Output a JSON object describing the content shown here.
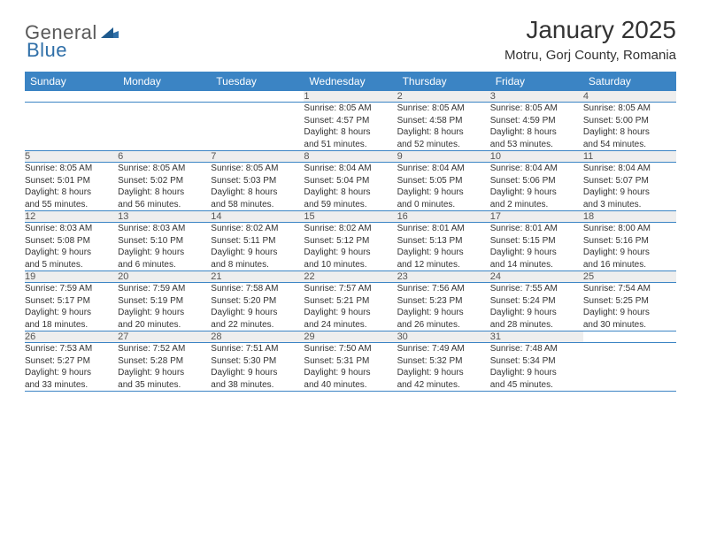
{
  "brand": {
    "part1": "General",
    "part2": "Blue"
  },
  "colors": {
    "header_bg": "#3b84c4",
    "header_text": "#ffffff",
    "daynum_bg": "#eeeeee",
    "daynum_text": "#555555",
    "row_border": "#3b84c4",
    "body_text": "#333333",
    "logo_gray": "#5a5a5a",
    "logo_blue": "#2f6fa8",
    "page_bg": "#ffffff"
  },
  "title": "January 2025",
  "location": "Motru, Gorj County, Romania",
  "weekdays": [
    "Sunday",
    "Monday",
    "Tuesday",
    "Wednesday",
    "Thursday",
    "Friday",
    "Saturday"
  ],
  "weeks": [
    {
      "nums": [
        "",
        "",
        "",
        "1",
        "2",
        "3",
        "4"
      ],
      "cells": [
        {
          "empty": true
        },
        {
          "empty": true
        },
        {
          "empty": true
        },
        {
          "sunrise": "Sunrise: 8:05 AM",
          "sunset": "Sunset: 4:57 PM",
          "day1": "Daylight: 8 hours",
          "day2": "and 51 minutes."
        },
        {
          "sunrise": "Sunrise: 8:05 AM",
          "sunset": "Sunset: 4:58 PM",
          "day1": "Daylight: 8 hours",
          "day2": "and 52 minutes."
        },
        {
          "sunrise": "Sunrise: 8:05 AM",
          "sunset": "Sunset: 4:59 PM",
          "day1": "Daylight: 8 hours",
          "day2": "and 53 minutes."
        },
        {
          "sunrise": "Sunrise: 8:05 AM",
          "sunset": "Sunset: 5:00 PM",
          "day1": "Daylight: 8 hours",
          "day2": "and 54 minutes."
        }
      ]
    },
    {
      "nums": [
        "5",
        "6",
        "7",
        "8",
        "9",
        "10",
        "11"
      ],
      "cells": [
        {
          "sunrise": "Sunrise: 8:05 AM",
          "sunset": "Sunset: 5:01 PM",
          "day1": "Daylight: 8 hours",
          "day2": "and 55 minutes."
        },
        {
          "sunrise": "Sunrise: 8:05 AM",
          "sunset": "Sunset: 5:02 PM",
          "day1": "Daylight: 8 hours",
          "day2": "and 56 minutes."
        },
        {
          "sunrise": "Sunrise: 8:05 AM",
          "sunset": "Sunset: 5:03 PM",
          "day1": "Daylight: 8 hours",
          "day2": "and 58 minutes."
        },
        {
          "sunrise": "Sunrise: 8:04 AM",
          "sunset": "Sunset: 5:04 PM",
          "day1": "Daylight: 8 hours",
          "day2": "and 59 minutes."
        },
        {
          "sunrise": "Sunrise: 8:04 AM",
          "sunset": "Sunset: 5:05 PM",
          "day1": "Daylight: 9 hours",
          "day2": "and 0 minutes."
        },
        {
          "sunrise": "Sunrise: 8:04 AM",
          "sunset": "Sunset: 5:06 PM",
          "day1": "Daylight: 9 hours",
          "day2": "and 2 minutes."
        },
        {
          "sunrise": "Sunrise: 8:04 AM",
          "sunset": "Sunset: 5:07 PM",
          "day1": "Daylight: 9 hours",
          "day2": "and 3 minutes."
        }
      ]
    },
    {
      "nums": [
        "12",
        "13",
        "14",
        "15",
        "16",
        "17",
        "18"
      ],
      "cells": [
        {
          "sunrise": "Sunrise: 8:03 AM",
          "sunset": "Sunset: 5:08 PM",
          "day1": "Daylight: 9 hours",
          "day2": "and 5 minutes."
        },
        {
          "sunrise": "Sunrise: 8:03 AM",
          "sunset": "Sunset: 5:10 PM",
          "day1": "Daylight: 9 hours",
          "day2": "and 6 minutes."
        },
        {
          "sunrise": "Sunrise: 8:02 AM",
          "sunset": "Sunset: 5:11 PM",
          "day1": "Daylight: 9 hours",
          "day2": "and 8 minutes."
        },
        {
          "sunrise": "Sunrise: 8:02 AM",
          "sunset": "Sunset: 5:12 PM",
          "day1": "Daylight: 9 hours",
          "day2": "and 10 minutes."
        },
        {
          "sunrise": "Sunrise: 8:01 AM",
          "sunset": "Sunset: 5:13 PM",
          "day1": "Daylight: 9 hours",
          "day2": "and 12 minutes."
        },
        {
          "sunrise": "Sunrise: 8:01 AM",
          "sunset": "Sunset: 5:15 PM",
          "day1": "Daylight: 9 hours",
          "day2": "and 14 minutes."
        },
        {
          "sunrise": "Sunrise: 8:00 AM",
          "sunset": "Sunset: 5:16 PM",
          "day1": "Daylight: 9 hours",
          "day2": "and 16 minutes."
        }
      ]
    },
    {
      "nums": [
        "19",
        "20",
        "21",
        "22",
        "23",
        "24",
        "25"
      ],
      "cells": [
        {
          "sunrise": "Sunrise: 7:59 AM",
          "sunset": "Sunset: 5:17 PM",
          "day1": "Daylight: 9 hours",
          "day2": "and 18 minutes."
        },
        {
          "sunrise": "Sunrise: 7:59 AM",
          "sunset": "Sunset: 5:19 PM",
          "day1": "Daylight: 9 hours",
          "day2": "and 20 minutes."
        },
        {
          "sunrise": "Sunrise: 7:58 AM",
          "sunset": "Sunset: 5:20 PM",
          "day1": "Daylight: 9 hours",
          "day2": "and 22 minutes."
        },
        {
          "sunrise": "Sunrise: 7:57 AM",
          "sunset": "Sunset: 5:21 PM",
          "day1": "Daylight: 9 hours",
          "day2": "and 24 minutes."
        },
        {
          "sunrise": "Sunrise: 7:56 AM",
          "sunset": "Sunset: 5:23 PM",
          "day1": "Daylight: 9 hours",
          "day2": "and 26 minutes."
        },
        {
          "sunrise": "Sunrise: 7:55 AM",
          "sunset": "Sunset: 5:24 PM",
          "day1": "Daylight: 9 hours",
          "day2": "and 28 minutes."
        },
        {
          "sunrise": "Sunrise: 7:54 AM",
          "sunset": "Sunset: 5:25 PM",
          "day1": "Daylight: 9 hours",
          "day2": "and 30 minutes."
        }
      ]
    },
    {
      "nums": [
        "26",
        "27",
        "28",
        "29",
        "30",
        "31",
        ""
      ],
      "cells": [
        {
          "sunrise": "Sunrise: 7:53 AM",
          "sunset": "Sunset: 5:27 PM",
          "day1": "Daylight: 9 hours",
          "day2": "and 33 minutes."
        },
        {
          "sunrise": "Sunrise: 7:52 AM",
          "sunset": "Sunset: 5:28 PM",
          "day1": "Daylight: 9 hours",
          "day2": "and 35 minutes."
        },
        {
          "sunrise": "Sunrise: 7:51 AM",
          "sunset": "Sunset: 5:30 PM",
          "day1": "Daylight: 9 hours",
          "day2": "and 38 minutes."
        },
        {
          "sunrise": "Sunrise: 7:50 AM",
          "sunset": "Sunset: 5:31 PM",
          "day1": "Daylight: 9 hours",
          "day2": "and 40 minutes."
        },
        {
          "sunrise": "Sunrise: 7:49 AM",
          "sunset": "Sunset: 5:32 PM",
          "day1": "Daylight: 9 hours",
          "day2": "and 42 minutes."
        },
        {
          "sunrise": "Sunrise: 7:48 AM",
          "sunset": "Sunset: 5:34 PM",
          "day1": "Daylight: 9 hours",
          "day2": "and 45 minutes."
        },
        {
          "empty": true
        }
      ]
    }
  ]
}
